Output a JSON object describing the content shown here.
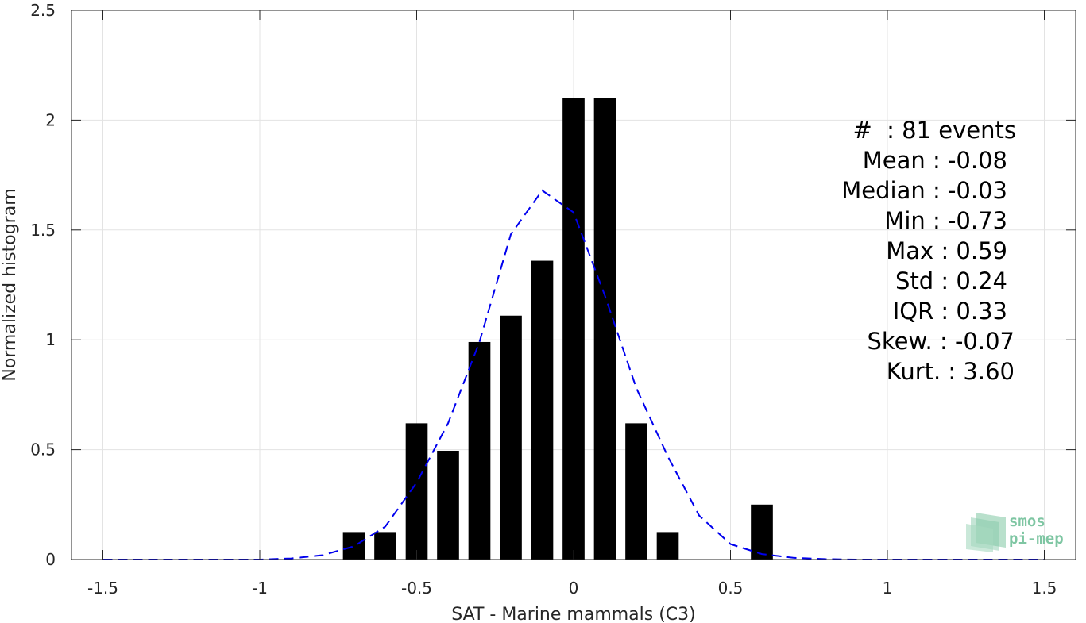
{
  "chart_data": {
    "type": "bar",
    "xlabel": "SAT - Marine mammals (C3)",
    "ylabel": "Normalized histogram",
    "xlim": [
      -1.6,
      1.6
    ],
    "ylim": [
      0,
      2.5
    ],
    "xticks": [
      -1.5,
      -1,
      -0.5,
      0,
      0.5,
      1,
      1.5
    ],
    "xtick_labels": [
      "-1.5",
      "-1",
      "-0.5",
      "0",
      "0.5",
      "1",
      "1.5"
    ],
    "yticks": [
      0,
      0.5,
      1,
      1.5,
      2,
      2.5
    ],
    "ytick_labels": [
      "0",
      "0.5",
      "1",
      "1.5",
      "2",
      "2.5"
    ],
    "grid": true,
    "bar_width": 0.07,
    "bars": {
      "x": [
        -0.7,
        -0.6,
        -0.5,
        -0.4,
        -0.3,
        -0.2,
        -0.1,
        0.0,
        0.1,
        0.2,
        0.3,
        0.6
      ],
      "values": [
        0.125,
        0.125,
        0.62,
        0.495,
        0.99,
        1.11,
        1.36,
        2.1,
        2.1,
        0.62,
        0.125,
        0.25
      ],
      "color": "#000000"
    },
    "fit_curve": {
      "style": "dashed",
      "color": "#0000ee",
      "x": [
        -1.5,
        -1.4,
        -1.3,
        -1.2,
        -1.1,
        -1.0,
        -0.9,
        -0.8,
        -0.7,
        -0.6,
        -0.5,
        -0.4,
        -0.3,
        -0.2,
        -0.1,
        0.0,
        0.1,
        0.2,
        0.3,
        0.4,
        0.5,
        0.6,
        0.7,
        0.8,
        0.9,
        1.0,
        1.1,
        1.2,
        1.3,
        1.4,
        1.5
      ],
      "y": [
        0.0,
        0.0,
        0.0,
        0.0,
        0.0,
        0.0,
        0.005,
        0.02,
        0.06,
        0.15,
        0.35,
        0.62,
        0.99,
        1.48,
        1.68,
        1.58,
        1.2,
        0.78,
        0.47,
        0.2,
        0.07,
        0.025,
        0.008,
        0.002,
        0.0,
        0.0,
        0.0,
        0.0,
        0.0,
        0.0,
        0.0
      ]
    }
  },
  "stats": {
    "events": "#  : 81 events",
    "mean": "Mean : -0.08",
    "median": "Median : -0.03",
    "min": "Min : -0.73",
    "max": "Max : 0.59",
    "std": "Std : 0.24",
    "iqr": "IQR : 0.33",
    "skew": "Skew. : -0.07",
    "kurt": "Kurt. : 3.60"
  },
  "logo": {
    "line1": "smos",
    "line2": "pi-mep",
    "color": "#7fc6a3"
  }
}
